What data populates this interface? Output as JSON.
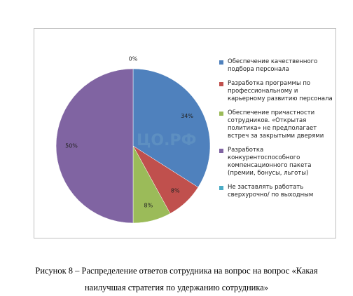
{
  "chart_data": {
    "type": "pie",
    "categories": [
      "Обеспечение качественного подбора персонала",
      "Разработка программы по профессиональному и карьерному развитию персонала",
      "Обеспечение причастности сотрудников. «Открытая политика» не предполагает встреч за закрытыми дверями",
      "Разработка конкурентоспособного компенсационного пакета (премии, бонусы, льготы)",
      "Не заставлять работать сверхурочно/ по выходным"
    ],
    "values": [
      34,
      8,
      8,
      50,
      0
    ],
    "value_labels": [
      "34%",
      "8%",
      "8%",
      "50%",
      "0%"
    ],
    "colors": [
      "#4f81bd",
      "#c0504d",
      "#9bbb59",
      "#8064a2",
      "#4bacc6"
    ],
    "legend": "right"
  },
  "watermark": "ЦО.РФ",
  "caption": "Рисунок 8 – Распределение ответов сотрудника на вопрос на вопрос «Какая наилучшая стратегия по удержанию сотрудника»"
}
